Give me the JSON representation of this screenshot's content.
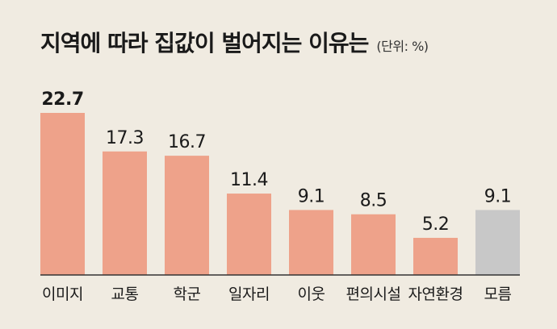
{
  "chart_data": {
    "type": "bar",
    "title": "지역에 따라 집값이 벌어지는 이유는",
    "unit_label": "(단위: %)",
    "categories": [
      "이미지",
      "교통",
      "학군",
      "일자리",
      "이웃",
      "편의시설",
      "자연환경",
      "모름"
    ],
    "values": [
      22.7,
      17.3,
      16.7,
      11.4,
      9.1,
      8.5,
      5.2,
      9.1
    ],
    "value_labels": [
      "22.7",
      "17.3",
      "16.7",
      "11.4",
      "9.1",
      "8.5",
      "5.2",
      "9.1"
    ],
    "highlight_index": 0,
    "ylim": [
      0,
      22.7
    ],
    "grid": false,
    "xlabel": "",
    "ylabel": "",
    "colors": {
      "bar": "#eea28a",
      "bar_unknown": "#c8c8c8",
      "baseline": "#333333",
      "text": "#1a1a1a"
    }
  }
}
